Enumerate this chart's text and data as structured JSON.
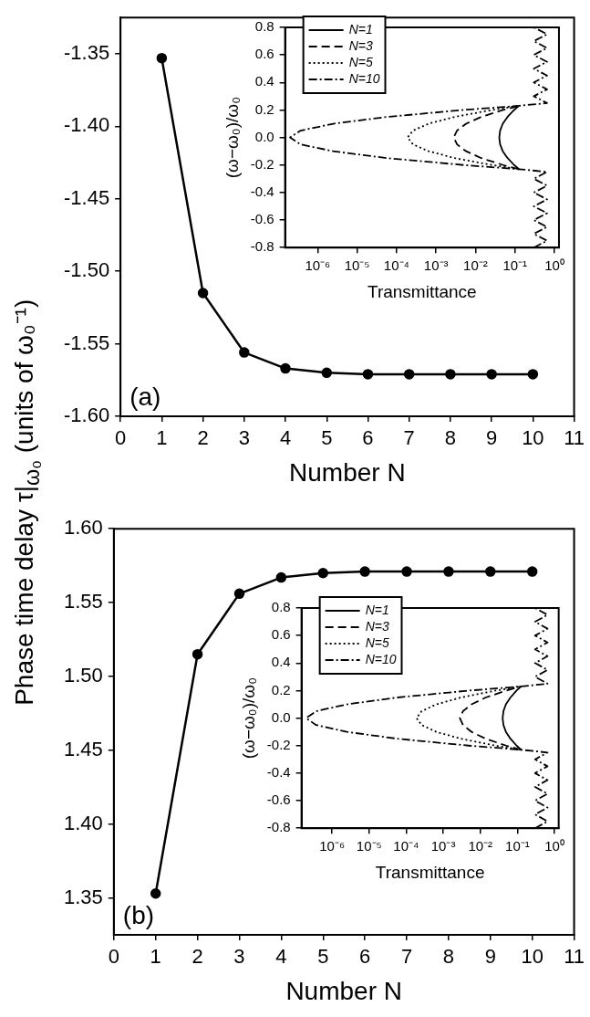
{
  "chart_data": [
    {
      "type": "line",
      "xlabel": "Number N",
      "ylabel": "Phase time delay τ|$_{ω₀}$ (units of ω₀⁻¹)",
      "x": [
        1,
        2,
        3,
        4,
        5,
        6,
        7,
        8,
        9,
        10
      ],
      "series": [
        {
          "color": "#000000",
          "values": [
            -1.353,
            -1.515,
            -1.556,
            -1.567,
            -1.57,
            -1.571,
            -1.571,
            -1.571,
            -1.571,
            -1.571
          ]
        }
      ],
      "xlim": [
        0,
        11
      ],
      "xticks": [
        0,
        1,
        2,
        3,
        4,
        5,
        6,
        7,
        8,
        9,
        10,
        11
      ],
      "ylim": [
        -1.6,
        -1.325
      ],
      "yticks": [
        -1.35,
        {
          "value": -1.4,
          "label": "-1.40"
        },
        -1.45,
        {
          "value": -1.5,
          "label": "-1.50"
        },
        -1.55,
        {
          "value": -1.6,
          "label": "-1.60"
        }
      ],
      "marker": "circle",
      "line_style": "solid",
      "grid": false,
      "legend": false,
      "annotations": [
        "(a)"
      ]
    },
    {
      "type": "line",
      "xlabel": "Transmittance",
      "ylabel": "(ω−ω₀)/ω₀",
      "log": "x",
      "xlim": [
        1.5e-07,
        1.3
      ],
      "xticks": [
        {
          "value": 1e-06,
          "label": "10⁻⁶"
        },
        {
          "value": 1e-05,
          "label": "10⁻⁵"
        },
        {
          "value": 0.0001,
          "label": "10⁻⁴"
        },
        {
          "value": 0.001,
          "label": "10⁻³"
        },
        {
          "value": 0.01,
          "label": "10⁻²"
        },
        {
          "value": 0.1,
          "label": "10⁻¹"
        },
        {
          "value": 1,
          "label": "10⁰"
        }
      ],
      "ylim": [
        -0.8,
        0.8
      ],
      "yticks": [
        -0.8,
        -0.6,
        -0.4,
        -0.2,
        {
          "value": 0,
          "label": "0.0"
        },
        0.2,
        0.4,
        0.6,
        0.8
      ],
      "grid": false,
      "legend": "top left",
      "marker": "none",
      "series": [
        {
          "name": "N=1",
          "color": "#000000",
          "line_style": "solid",
          "x": [
            0.126,
            0.095,
            0.065,
            0.049,
            0.042,
            0.04,
            0.042,
            0.049,
            0.065,
            0.095,
            0.126
          ],
          "values": [
            -0.23,
            -0.2,
            -0.15,
            -0.1,
            -0.05,
            0,
            0.05,
            0.1,
            0.15,
            0.2,
            0.23
          ]
        },
        {
          "name": "N=3",
          "color": "#000000",
          "line_style": "dashed",
          "x": [
            0.126,
            0.05,
            0.014,
            0.0058,
            0.0034,
            0.0028,
            0.0034,
            0.0058,
            0.014,
            0.05,
            0.126
          ],
          "values": [
            -0.23,
            -0.2,
            -0.15,
            -0.1,
            -0.05,
            0,
            0.05,
            0.1,
            0.15,
            0.2,
            0.23
          ]
        },
        {
          "name": "N=5",
          "color": "#000000",
          "line_style": "dotted",
          "x": [
            0.126,
            0.026,
            0.003,
            0.00065,
            0.00026,
            0.00019,
            0.00026,
            0.00065,
            0.003,
            0.026,
            0.126
          ],
          "values": [
            -0.23,
            -0.2,
            -0.15,
            -0.1,
            -0.05,
            0,
            0.05,
            0.1,
            0.15,
            0.2,
            0.23
          ]
        },
        {
          "name": "N=10",
          "color": "#000000",
          "line_style": "dashdot",
          "x": [
            0.3,
            0.65,
            0.3,
            0.65,
            0.3,
            0.65,
            0.3,
            0.65,
            0.3,
            0.65,
            0.3,
            0.65,
            0.126,
            0.0049,
            5.9e-05,
            2.5e-06,
            3.7e-07,
            2e-07,
            3.7e-07,
            2.5e-06,
            5.9e-05,
            0.0049,
            0.126,
            0.65,
            0.3,
            0.65,
            0.3,
            0.65,
            0.3,
            0.65,
            0.3,
            0.65,
            0.3,
            0.65,
            0.3
          ],
          "values": [
            -0.8,
            -0.75,
            -0.7,
            -0.65,
            -0.6,
            -0.55,
            -0.5,
            -0.45,
            -0.4,
            -0.35,
            -0.3,
            -0.25,
            -0.23,
            -0.2,
            -0.15,
            -0.1,
            -0.05,
            0,
            0.05,
            0.1,
            0.15,
            0.2,
            0.23,
            0.25,
            0.3,
            0.35,
            0.4,
            0.45,
            0.5,
            0.55,
            0.6,
            0.65,
            0.7,
            0.75,
            0.8
          ]
        }
      ]
    },
    {
      "type": "line",
      "xlabel": "Number N",
      "x": [
        1,
        2,
        3,
        4,
        5,
        6,
        7,
        8,
        9,
        10
      ],
      "series": [
        {
          "color": "#000000",
          "values": [
            1.353,
            1.515,
            1.556,
            1.567,
            1.57,
            1.571,
            1.571,
            1.571,
            1.571,
            1.571
          ]
        }
      ],
      "xlim": [
        0,
        11
      ],
      "xticks": [
        0,
        1,
        2,
        3,
        4,
        5,
        6,
        7,
        8,
        9,
        10,
        11
      ],
      "ylim": [
        1.325,
        1.6
      ],
      "yticks": [
        1.35,
        {
          "value": 1.4,
          "label": "1.40"
        },
        1.45,
        {
          "value": 1.5,
          "label": "1.50"
        },
        1.55,
        {
          "value": 1.6,
          "label": "1.60"
        }
      ],
      "marker": "circle",
      "line_style": "solid",
      "grid": false,
      "legend": false,
      "annotations": [
        "(b)"
      ]
    },
    {
      "type": "line",
      "xlabel": "Transmittance",
      "ylabel": "(ω−ω₀)/ω₀",
      "log": "x",
      "xlim": [
        1.5e-07,
        1.3
      ],
      "xticks": [
        {
          "value": 1e-06,
          "label": "10⁻⁶"
        },
        {
          "value": 1e-05,
          "label": "10⁻⁵"
        },
        {
          "value": 0.0001,
          "label": "10⁻⁴"
        },
        {
          "value": 0.001,
          "label": "10⁻³"
        },
        {
          "value": 0.01,
          "label": "10⁻²"
        },
        {
          "value": 0.1,
          "label": "10⁻¹"
        },
        {
          "value": 1,
          "label": "10⁰"
        }
      ],
      "ylim": [
        -0.8,
        0.8
      ],
      "yticks": [
        -0.8,
        -0.6,
        -0.4,
        -0.2,
        {
          "value": 0,
          "label": "0.0"
        },
        0.2,
        0.4,
        0.6,
        0.8
      ],
      "grid": false,
      "legend": "top left",
      "marker": "none",
      "series": [
        {
          "name": "N=1",
          "color": "#000000",
          "line_style": "solid",
          "x": [
            0.126,
            0.095,
            0.065,
            0.049,
            0.042,
            0.04,
            0.042,
            0.049,
            0.065,
            0.095,
            0.126
          ],
          "values": [
            -0.23,
            -0.2,
            -0.15,
            -0.1,
            -0.05,
            0,
            0.05,
            0.1,
            0.15,
            0.2,
            0.23
          ]
        },
        {
          "name": "N=3",
          "color": "#000000",
          "line_style": "dashed",
          "x": [
            0.126,
            0.05,
            0.014,
            0.0058,
            0.0034,
            0.0028,
            0.0034,
            0.0058,
            0.014,
            0.05,
            0.126
          ],
          "values": [
            -0.23,
            -0.2,
            -0.15,
            -0.1,
            -0.05,
            0,
            0.05,
            0.1,
            0.15,
            0.2,
            0.23
          ]
        },
        {
          "name": "N=5",
          "color": "#000000",
          "line_style": "dotted",
          "x": [
            0.126,
            0.026,
            0.003,
            0.00065,
            0.00026,
            0.00019,
            0.00026,
            0.00065,
            0.003,
            0.026,
            0.126
          ],
          "values": [
            -0.23,
            -0.2,
            -0.15,
            -0.1,
            -0.05,
            0,
            0.05,
            0.1,
            0.15,
            0.2,
            0.23
          ]
        },
        {
          "name": "N=10",
          "color": "#000000",
          "line_style": "dashdot",
          "x": [
            0.3,
            0.65,
            0.3,
            0.65,
            0.3,
            0.65,
            0.3,
            0.65,
            0.3,
            0.65,
            0.3,
            0.65,
            0.126,
            0.0049,
            5.9e-05,
            2.5e-06,
            3.7e-07,
            2e-07,
            3.7e-07,
            2.5e-06,
            5.9e-05,
            0.0049,
            0.126,
            0.65,
            0.3,
            0.65,
            0.3,
            0.65,
            0.3,
            0.65,
            0.3,
            0.65,
            0.3,
            0.65,
            0.3
          ],
          "values": [
            -0.8,
            -0.75,
            -0.7,
            -0.65,
            -0.6,
            -0.55,
            -0.5,
            -0.45,
            -0.4,
            -0.35,
            -0.3,
            -0.25,
            -0.23,
            -0.2,
            -0.15,
            -0.1,
            -0.05,
            0,
            0.05,
            0.1,
            0.15,
            0.2,
            0.23,
            0.25,
            0.3,
            0.35,
            0.4,
            0.45,
            0.5,
            0.55,
            0.6,
            0.65,
            0.7,
            0.75,
            0.8
          ]
        }
      ]
    }
  ]
}
